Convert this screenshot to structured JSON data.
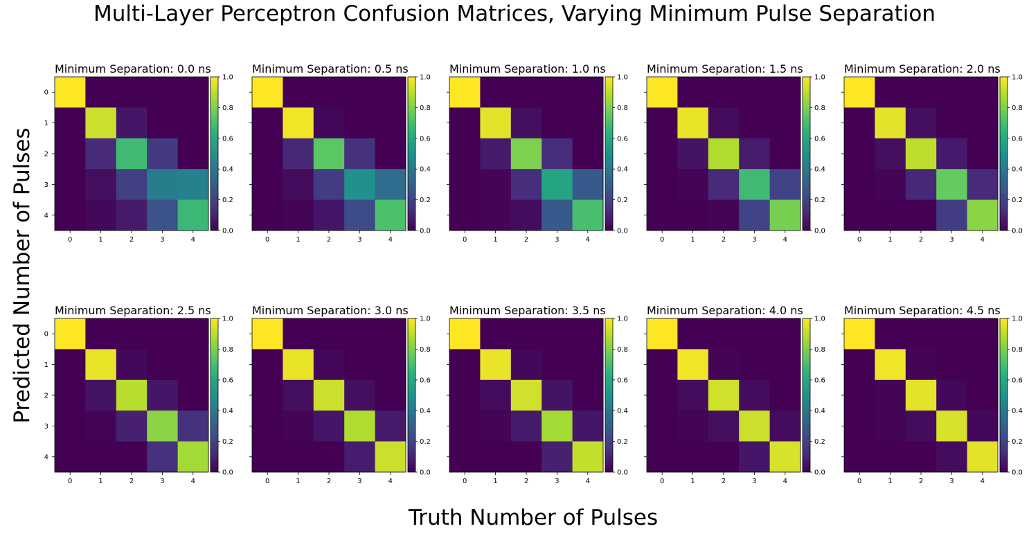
{
  "figure": {
    "title": "Multi-Layer Perceptron Confusion Matrices, Varying Minimum Pulse Separation",
    "xlabel": "Truth Number of Pulses",
    "ylabel": "Predicted Number of Pulses"
  },
  "chart_data": [
    {
      "type": "heatmap",
      "title": "Minimum Separation: 0.0 ns",
      "x": [
        0,
        1,
        2,
        3,
        4
      ],
      "y": [
        0,
        1,
        2,
        3,
        4
      ],
      "clim": [
        0,
        1
      ],
      "colorbar_ticks": [
        "0.0",
        "0.2",
        "0.4",
        "0.6",
        "0.8",
        "1.0"
      ],
      "values": [
        [
          1,
          0,
          0,
          0,
          0
        ],
        [
          0,
          0.92,
          0.06,
          0,
          0
        ],
        [
          0,
          0.12,
          0.68,
          0.17,
          0
        ],
        [
          0,
          0.04,
          0.19,
          0.42,
          0.43
        ],
        [
          0,
          0.02,
          0.07,
          0.25,
          0.67
        ]
      ]
    },
    {
      "type": "heatmap",
      "title": "Minimum Separation: 0.5 ns",
      "x": [
        0,
        1,
        2,
        3,
        4
      ],
      "y": [
        0,
        1,
        2,
        3,
        4
      ],
      "clim": [
        0,
        1
      ],
      "colorbar_ticks": [
        "0.0",
        "0.2",
        "0.4",
        "0.6",
        "0.8",
        "1.0"
      ],
      "values": [
        [
          1,
          0,
          0,
          0,
          0
        ],
        [
          0,
          0.98,
          0.02,
          0,
          0
        ],
        [
          0,
          0.11,
          0.74,
          0.14,
          0
        ],
        [
          0,
          0.03,
          0.18,
          0.5,
          0.35
        ],
        [
          0,
          0.01,
          0.06,
          0.23,
          0.71
        ]
      ]
    },
    {
      "type": "heatmap",
      "title": "Minimum Separation: 1.0 ns",
      "x": [
        0,
        1,
        2,
        3,
        4
      ],
      "y": [
        0,
        1,
        2,
        3,
        4
      ],
      "clim": [
        0,
        1
      ],
      "colorbar_ticks": [
        "0.0",
        "0.2",
        "0.4",
        "0.6",
        "0.8",
        "1.0"
      ],
      "values": [
        [
          1,
          0,
          0,
          0,
          0
        ],
        [
          0,
          0.96,
          0.04,
          0,
          0
        ],
        [
          0,
          0.07,
          0.8,
          0.13,
          0
        ],
        [
          0,
          0.01,
          0.13,
          0.58,
          0.28
        ],
        [
          0,
          0.01,
          0.03,
          0.28,
          0.7
        ]
      ]
    },
    {
      "type": "heatmap",
      "title": "Minimum Separation: 1.5 ns",
      "x": [
        0,
        1,
        2,
        3,
        4
      ],
      "y": [
        0,
        1,
        2,
        3,
        4
      ],
      "clim": [
        0,
        1
      ],
      "colorbar_ticks": [
        "0.0",
        "0.2",
        "0.4",
        "0.6",
        "0.8",
        "1.0"
      ],
      "values": [
        [
          1,
          0,
          0,
          0,
          0
        ],
        [
          0,
          0.97,
          0.03,
          0,
          0
        ],
        [
          0,
          0.05,
          0.88,
          0.08,
          0
        ],
        [
          0,
          0.01,
          0.12,
          0.68,
          0.2
        ],
        [
          0,
          0,
          0.01,
          0.2,
          0.79
        ]
      ]
    },
    {
      "type": "heatmap",
      "title": "Minimum Separation: 2.0 ns",
      "x": [
        0,
        1,
        2,
        3,
        4
      ],
      "y": [
        0,
        1,
        2,
        3,
        4
      ],
      "clim": [
        0,
        1
      ],
      "colorbar_ticks": [
        "0.0",
        "0.2",
        "0.4",
        "0.6",
        "0.8",
        "1.0"
      ],
      "values": [
        [
          1,
          0,
          0,
          0,
          0
        ],
        [
          0,
          0.96,
          0.04,
          0,
          0
        ],
        [
          0,
          0.04,
          0.9,
          0.07,
          0
        ],
        [
          0,
          0.01,
          0.11,
          0.76,
          0.12
        ],
        [
          0,
          0,
          0,
          0.18,
          0.82
        ]
      ]
    },
    {
      "type": "heatmap",
      "title": "Minimum Separation: 2.5 ns",
      "x": [
        0,
        1,
        2,
        3,
        4
      ],
      "y": [
        0,
        1,
        2,
        3,
        4
      ],
      "clim": [
        0,
        1
      ],
      "colorbar_ticks": [
        "0.0",
        "0.2",
        "0.4",
        "0.6",
        "0.8",
        "1.0"
      ],
      "values": [
        [
          1,
          0,
          0,
          0,
          0
        ],
        [
          0,
          0.97,
          0.02,
          0,
          0
        ],
        [
          0,
          0.05,
          0.89,
          0.06,
          0
        ],
        [
          0,
          0.01,
          0.09,
          0.82,
          0.14
        ],
        [
          0,
          0,
          0,
          0.14,
          0.86
        ]
      ]
    },
    {
      "type": "heatmap",
      "title": "Minimum Separation: 3.0 ns",
      "x": [
        0,
        1,
        2,
        3,
        4
      ],
      "y": [
        0,
        1,
        2,
        3,
        4
      ],
      "clim": [
        0,
        1
      ],
      "colorbar_ticks": [
        "0.0",
        "0.2",
        "0.4",
        "0.6",
        "0.8",
        "1.0"
      ],
      "values": [
        [
          1,
          0,
          0,
          0,
          0
        ],
        [
          0,
          0.97,
          0.02,
          0,
          0
        ],
        [
          0,
          0.04,
          0.92,
          0.04,
          0
        ],
        [
          0,
          0.01,
          0.06,
          0.88,
          0.07
        ],
        [
          0,
          0,
          0,
          0.08,
          0.92
        ]
      ]
    },
    {
      "type": "heatmap",
      "title": "Minimum Separation: 3.5 ns",
      "x": [
        0,
        1,
        2,
        3,
        4
      ],
      "y": [
        0,
        1,
        2,
        3,
        4
      ],
      "clim": [
        0,
        1
      ],
      "colorbar_ticks": [
        "0.0",
        "0.2",
        "0.4",
        "0.6",
        "0.8",
        "1.0"
      ],
      "values": [
        [
          1,
          0,
          0,
          0,
          0
        ],
        [
          0,
          0.97,
          0.02,
          0,
          0
        ],
        [
          0,
          0.03,
          0.93,
          0.05,
          0
        ],
        [
          0,
          0.01,
          0.07,
          0.86,
          0.06
        ],
        [
          0,
          0,
          0,
          0.09,
          0.91
        ]
      ]
    },
    {
      "type": "heatmap",
      "title": "Minimum Separation: 4.0 ns",
      "x": [
        0,
        1,
        2,
        3,
        4
      ],
      "y": [
        0,
        1,
        2,
        3,
        4
      ],
      "clim": [
        0,
        1
      ],
      "colorbar_ticks": [
        "0.0",
        "0.2",
        "0.4",
        "0.6",
        "0.8",
        "1.0"
      ],
      "values": [
        [
          1,
          0,
          0,
          0,
          0
        ],
        [
          0,
          0.98,
          0.01,
          0,
          0
        ],
        [
          0,
          0.03,
          0.93,
          0.03,
          0
        ],
        [
          0,
          0.01,
          0.04,
          0.92,
          0.03
        ],
        [
          0,
          0,
          0,
          0.06,
          0.94
        ]
      ]
    },
    {
      "type": "heatmap",
      "title": "Minimum Separation: 4.5 ns",
      "x": [
        0,
        1,
        2,
        3,
        4
      ],
      "y": [
        0,
        1,
        2,
        3,
        4
      ],
      "clim": [
        0,
        1
      ],
      "colorbar_ticks": [
        "0.0",
        "0.2",
        "0.4",
        "0.6",
        "0.8",
        "1.0"
      ],
      "values": [
        [
          1,
          0,
          0,
          0,
          0
        ],
        [
          0,
          0.98,
          0.01,
          0,
          0
        ],
        [
          0,
          0.01,
          0.96,
          0.02,
          0
        ],
        [
          0,
          0.01,
          0.03,
          0.94,
          0.02
        ],
        [
          0,
          0,
          0,
          0.03,
          0.96
        ]
      ]
    }
  ]
}
